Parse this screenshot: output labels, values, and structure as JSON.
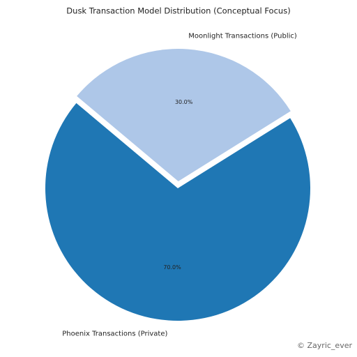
{
  "chart_data": {
    "type": "pie",
    "title": "Dusk Transaction Model Distribution (Conceptual Focus)",
    "categories": [
      "Phoenix Transactions (Private)",
      "Moonlight Transactions (Public)"
    ],
    "values": [
      70,
      30
    ],
    "value_labels": [
      "70.0%",
      "30.0%"
    ],
    "colors": [
      "#1f77b4",
      "#aec7e8"
    ]
  },
  "watermark": "© Zayric_ever"
}
